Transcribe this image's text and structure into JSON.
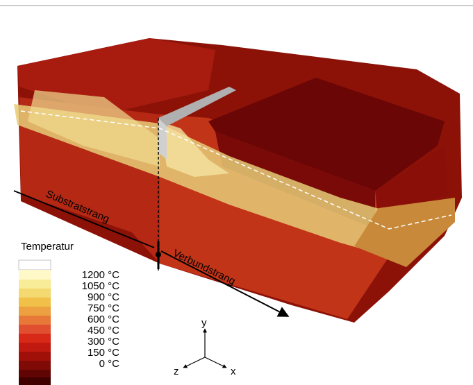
{
  "annotations": {
    "substrate": "Substratstrang",
    "composite": "Verbundstrang"
  },
  "legend": {
    "title": "Temperatur",
    "labels": [
      "1200 °C",
      "1050 °C",
      "900 °C",
      "750 °C",
      "600 °C",
      "450 °C",
      "300 °C",
      "150 °C",
      "0 °C"
    ]
  },
  "axes": {
    "y": "y",
    "z": "z",
    "x": "x"
  }
}
